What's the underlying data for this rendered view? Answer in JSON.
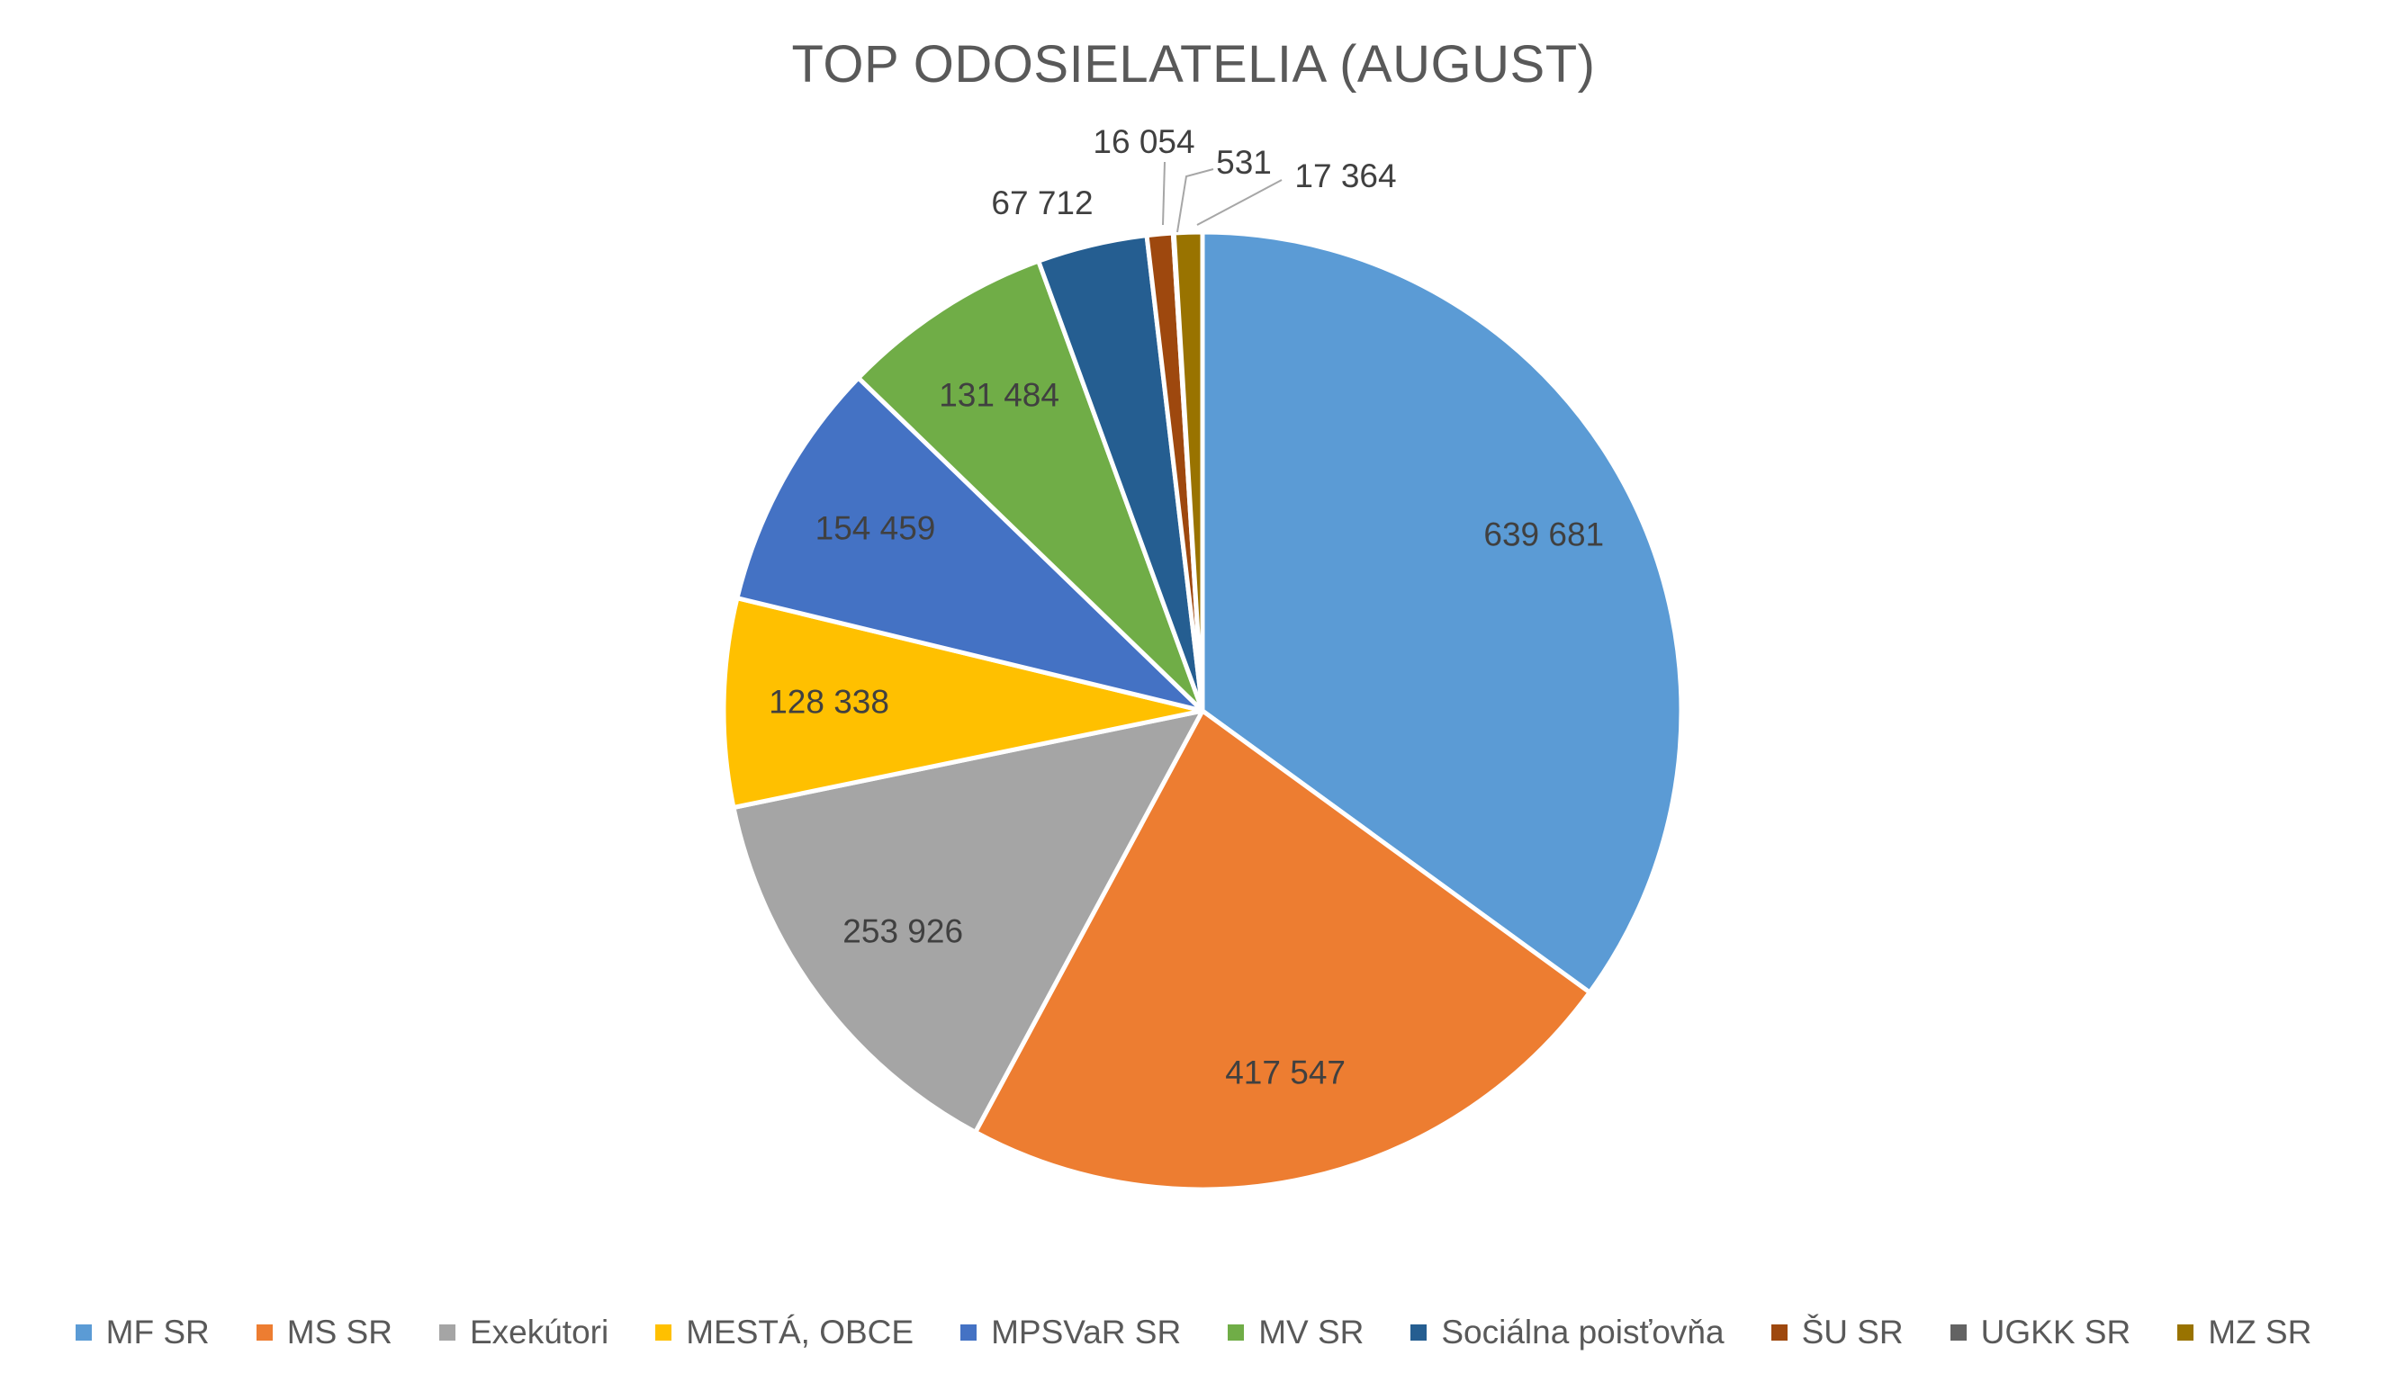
{
  "chart_data": {
    "type": "pie",
    "title": "TOP ODOSIELATELIA (AUGUST)",
    "legend_position": "bottom",
    "slices": [
      {
        "label": "MF SR",
        "value": 639681,
        "value_label": "639 681",
        "color": "#5B9BD5"
      },
      {
        "label": "MS SR",
        "value": 417547,
        "value_label": "417 547",
        "color": "#ED7D31"
      },
      {
        "label": "Exekútori",
        "value": 253926,
        "value_label": "253 926",
        "color": "#A5A5A5"
      },
      {
        "label": "MESTÁ, OBCE",
        "value": 128338,
        "value_label": "128 338",
        "color": "#FFC000"
      },
      {
        "label": "MPSVaR SR",
        "value": 154459,
        "value_label": "154 459",
        "color": "#4472C4"
      },
      {
        "label": "MV SR",
        "value": 131484,
        "value_label": "131 484",
        "color": "#70AD47"
      },
      {
        "label": "Sociálna poisťovňa",
        "value": 67712,
        "value_label": "67 712",
        "color": "#255E91"
      },
      {
        "label": "ŠU SR",
        "value": 16054,
        "value_label": "16 054",
        "color": "#9E480E"
      },
      {
        "label": "UGKK SR",
        "value": 531,
        "value_label": "531",
        "color": "#636363"
      },
      {
        "label": "MZ SR",
        "value": 17364,
        "value_label": "17 364",
        "color": "#997300"
      }
    ]
  }
}
